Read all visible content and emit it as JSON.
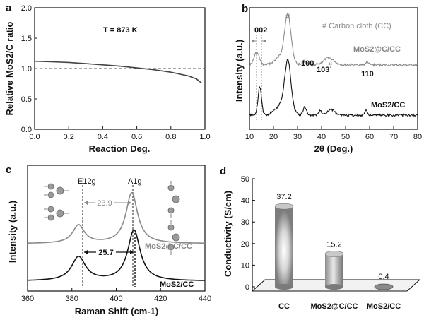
{
  "chart_data": [
    {
      "panel": "a",
      "type": "line",
      "xlabel": "Reaction Deg.",
      "ylabel": "Relative MoS2/C ratio",
      "xlim": [
        0.0,
        1.0
      ],
      "ylim": [
        0.0,
        2.0
      ],
      "xticks": [
        "0.0",
        "0.2",
        "0.4",
        "0.6",
        "0.8",
        "1.0"
      ],
      "yticks": [
        "0.0",
        "0.5",
        "1.0",
        "1.5",
        "2.0"
      ],
      "annotation": "T = 873 K",
      "reference_line": {
        "y": 1.0,
        "style": "dashed"
      },
      "series": [
        {
          "x": [
            0.0,
            0.1,
            0.2,
            0.3,
            0.4,
            0.5,
            0.6,
            0.7,
            0.8,
            0.9,
            0.95,
            0.98
          ],
          "y": [
            1.12,
            1.11,
            1.1,
            1.08,
            1.06,
            1.04,
            1.01,
            0.98,
            0.94,
            0.88,
            0.83,
            0.76
          ]
        }
      ]
    },
    {
      "panel": "b",
      "type": "line",
      "xlabel": "2θ (Deg.)",
      "ylabel": "Intensity (a.u.)",
      "xlim": [
        10,
        80
      ],
      "xticks": [
        "10",
        "20",
        "30",
        "40",
        "50",
        "60",
        "70",
        "80"
      ],
      "legend": "# Carbon cloth (CC)",
      "peak_labels": [
        "002",
        "#",
        "100",
        "103",
        "#",
        "110"
      ],
      "series": [
        {
          "name": "MoS2@C/CC",
          "color": "#8a8a8a"
        },
        {
          "name": "MoS2/CC",
          "color": "#111111"
        }
      ]
    },
    {
      "panel": "c",
      "type": "line",
      "xlabel": "Raman Shift (cm-1)",
      "ylabel": "Intensity (a.u.)",
      "xlim": [
        360,
        440
      ],
      "xticks": [
        "360",
        "380",
        "400",
        "420",
        "440"
      ],
      "peak_labels": [
        "E12g",
        "A1g"
      ],
      "separations": [
        "23.9",
        "25.7"
      ],
      "series": [
        {
          "name": "MoS2@C/CC",
          "color": "#8a8a8a",
          "peaks": [
            383,
            407
          ]
        },
        {
          "name": "MoS2/CC",
          "color": "#111111",
          "peaks": [
            383,
            408
          ]
        }
      ]
    },
    {
      "panel": "d",
      "type": "bar",
      "ylabel": "Conductivity (S/cm)",
      "ylim": [
        0,
        50
      ],
      "yticks": [
        "0",
        "10",
        "20",
        "30",
        "40",
        "50"
      ],
      "categories": [
        "CC",
        "MoS2@C/CC",
        "MoS2/CC"
      ],
      "values": [
        37.2,
        15.2,
        0.4
      ],
      "value_labels": [
        "37.2",
        "15.2",
        "0.4"
      ]
    }
  ],
  "labels": {
    "panel_a": "a",
    "panel_b": "b",
    "panel_c": "c",
    "panel_d": "d",
    "a_xlabel": "Reaction Deg.",
    "a_ylabel": "Relative MoS2/C ratio",
    "a_temp": "T = 873 K",
    "b_xlabel": "2θ (Deg.)",
    "b_ylabel": "Intensity (a.u.)",
    "b_legend": "# Carbon cloth (CC)",
    "b_series1": "MoS2@C/CC",
    "b_series2": "MoS2/CC",
    "b_p002": "002",
    "b_hash1": "#",
    "b_p100": "100",
    "b_p103": "103",
    "b_hash2": "#",
    "b_p110": "110",
    "c_xlabel": "Raman Shift (cm-1)",
    "c_ylabel": "Intensity (a.u.)",
    "c_e2g": "E12g",
    "c_a1g": "A1g",
    "c_sep1": "23.9",
    "c_sep2": "25.7",
    "c_series1": "MoS2@C/CC",
    "c_series2": "MoS2/CC",
    "d_ylabel": "Conductivity (S/cm)"
  }
}
